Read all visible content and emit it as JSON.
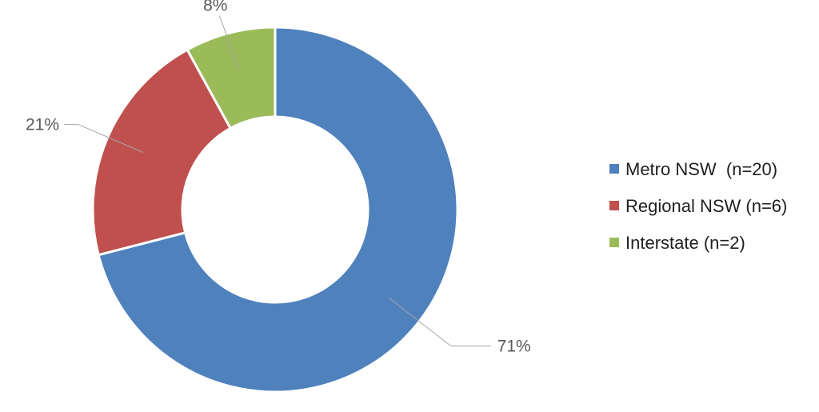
{
  "chart_data": {
    "type": "pie",
    "variant": "donut",
    "title": "",
    "legend_position": "right",
    "series": [
      {
        "name": "Metro NSW  (n=20)",
        "value": 71,
        "label": "71%",
        "color": "#4f81bd"
      },
      {
        "name": "Regional NSW (n=6)",
        "value": 21,
        "label": "21%",
        "color": "#c0504d"
      },
      {
        "name": "Interstate (n=2)",
        "value": 8,
        "label": "8%",
        "color": "#9bbb59"
      }
    ]
  }
}
